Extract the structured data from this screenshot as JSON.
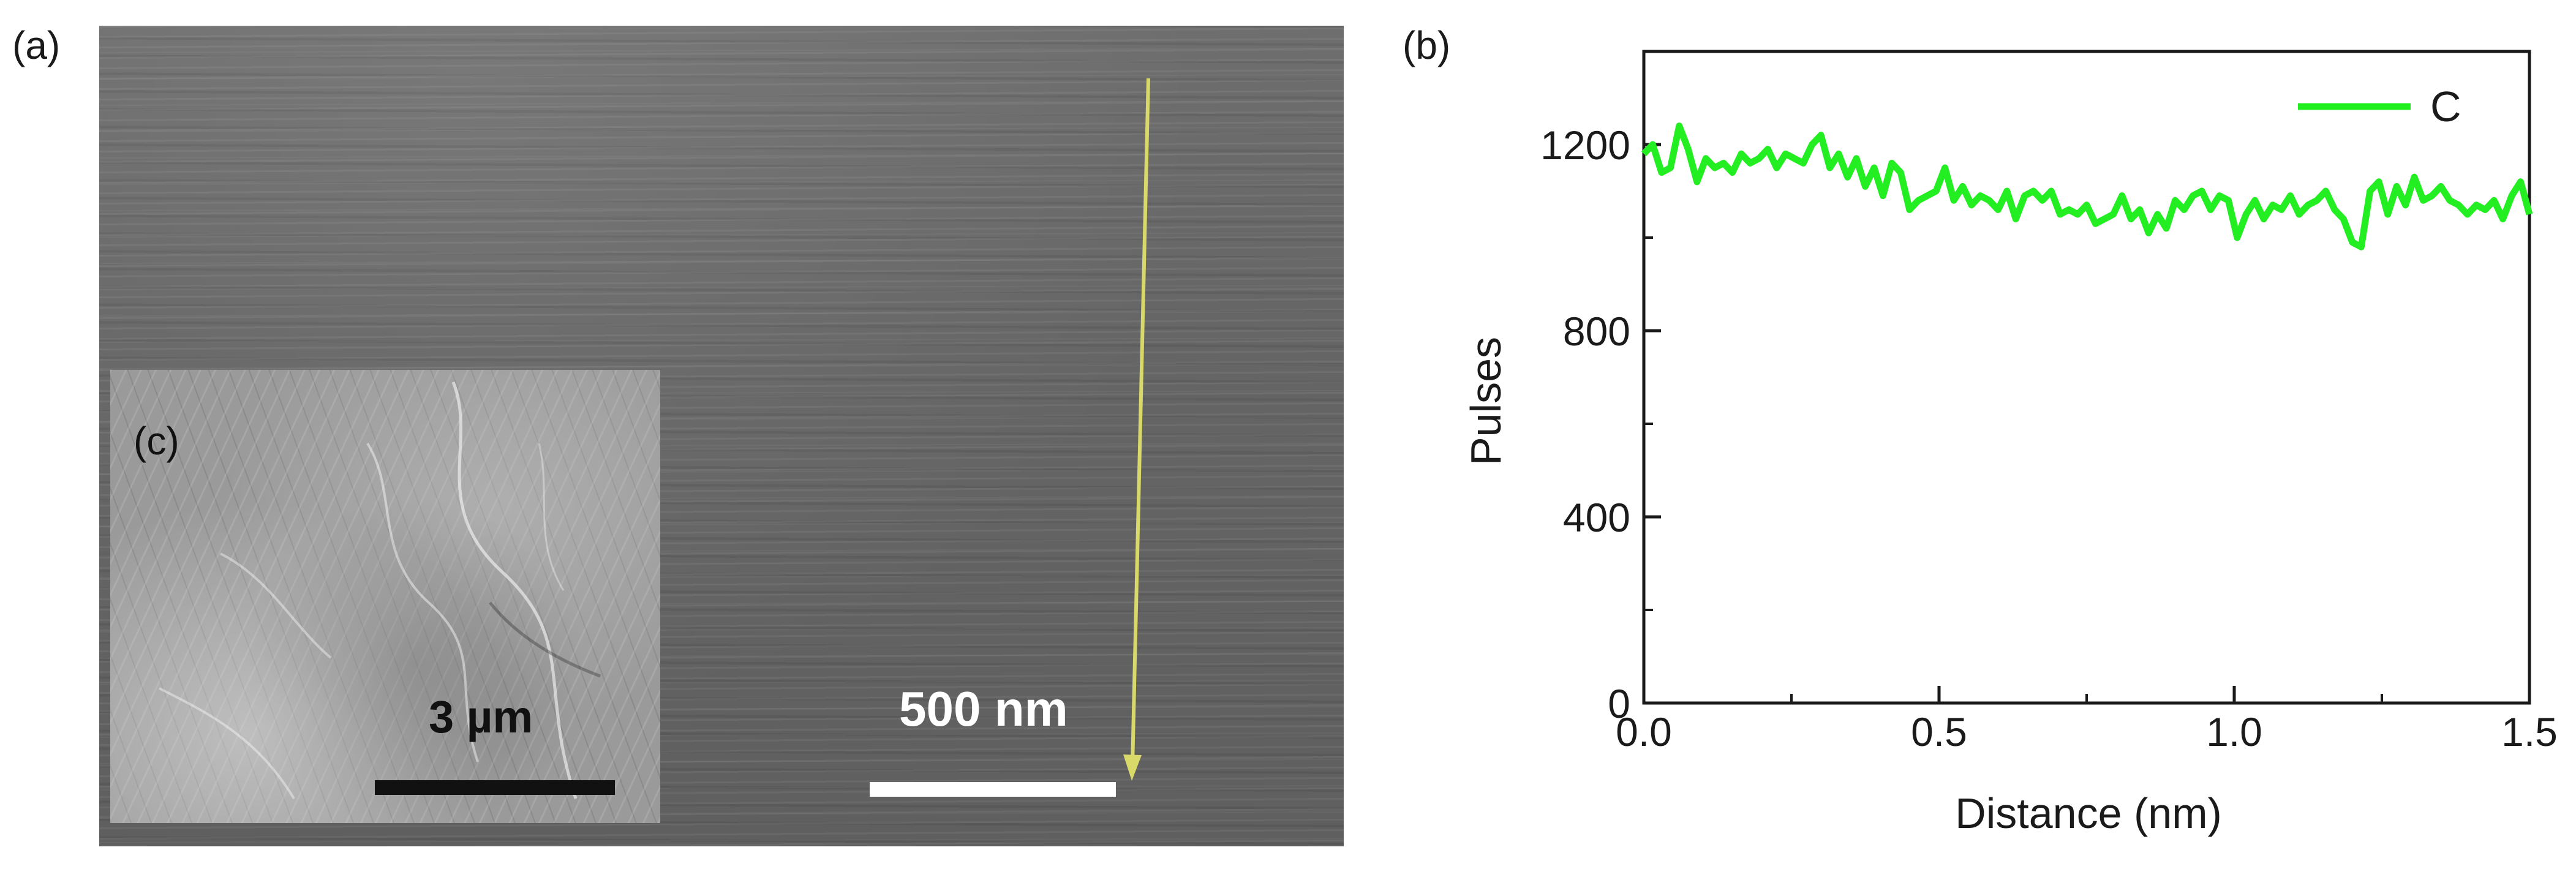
{
  "panel_labels": {
    "a": "(a)",
    "b": "(b)",
    "c": "(c)"
  },
  "sem_panel": {
    "scale_bar_label": "500 nm",
    "inset": {
      "scale_bar_label": "3 µm"
    }
  },
  "colors": {
    "line": "#22ee22",
    "arrow": "#d9d96a",
    "axis": "#1a1a1a"
  },
  "chart_data": {
    "type": "line",
    "title": "",
    "xlabel": "Distance (nm)",
    "ylabel": "Pulses",
    "xlim": [
      0,
      1.5
    ],
    "ylim": [
      0,
      1400
    ],
    "x_ticks": [
      0.0,
      0.5,
      1.0,
      1.5
    ],
    "x_tick_labels": [
      "0.0",
      "0.5",
      "1.0",
      "1.5"
    ],
    "y_ticks": [
      0,
      400,
      800,
      1200
    ],
    "y_tick_labels": [
      "0",
      "400",
      "800",
      "1200"
    ],
    "legend": {
      "position": "top-right",
      "entries": [
        "C"
      ]
    },
    "series": [
      {
        "name": "C",
        "x": [
          0,
          0.015,
          0.03,
          0.045,
          0.06,
          0.075,
          0.09,
          0.105,
          0.12,
          0.135,
          0.15,
          0.165,
          0.18,
          0.195,
          0.21,
          0.225,
          0.24,
          0.255,
          0.27,
          0.285,
          0.3,
          0.315,
          0.33,
          0.345,
          0.36,
          0.375,
          0.39,
          0.405,
          0.42,
          0.435,
          0.45,
          0.465,
          0.48,
          0.495,
          0.51,
          0.525,
          0.54,
          0.555,
          0.57,
          0.585,
          0.6,
          0.615,
          0.63,
          0.645,
          0.66,
          0.675,
          0.69,
          0.705,
          0.72,
          0.735,
          0.75,
          0.765,
          0.78,
          0.795,
          0.81,
          0.825,
          0.84,
          0.855,
          0.87,
          0.885,
          0.9,
          0.915,
          0.93,
          0.945,
          0.96,
          0.975,
          0.99,
          1.005,
          1.02,
          1.035,
          1.05,
          1.065,
          1.08,
          1.095,
          1.11,
          1.125,
          1.14,
          1.155,
          1.17,
          1.185,
          1.2,
          1.215,
          1.23,
          1.245,
          1.26,
          1.275,
          1.29,
          1.305,
          1.32,
          1.335,
          1.35,
          1.365,
          1.38,
          1.395,
          1.41,
          1.425,
          1.44,
          1.455,
          1.47,
          1.485,
          1.5
        ],
        "values": [
          1180,
          1200,
          1140,
          1150,
          1240,
          1190,
          1120,
          1170,
          1150,
          1160,
          1140,
          1180,
          1160,
          1170,
          1190,
          1150,
          1180,
          1170,
          1160,
          1200,
          1220,
          1150,
          1180,
          1130,
          1170,
          1110,
          1150,
          1090,
          1160,
          1140,
          1060,
          1080,
          1090,
          1100,
          1150,
          1080,
          1110,
          1070,
          1090,
          1080,
          1060,
          1100,
          1040,
          1090,
          1100,
          1080,
          1100,
          1050,
          1060,
          1050,
          1070,
          1030,
          1040,
          1050,
          1090,
          1040,
          1060,
          1010,
          1050,
          1020,
          1080,
          1060,
          1090,
          1100,
          1060,
          1090,
          1080,
          1000,
          1050,
          1080,
          1040,
          1070,
          1060,
          1090,
          1050,
          1070,
          1080,
          1100,
          1060,
          1040,
          990,
          980,
          1100,
          1120,
          1050,
          1110,
          1070,
          1130,
          1080,
          1090,
          1110,
          1080,
          1070,
          1050,
          1070,
          1060,
          1080,
          1040,
          1090,
          1120,
          1050
        ]
      }
    ]
  }
}
